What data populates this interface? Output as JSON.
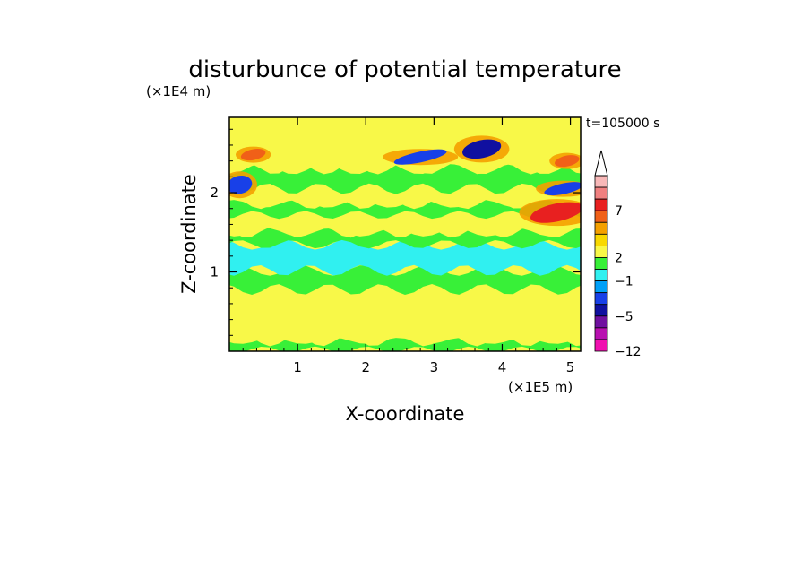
{
  "chart_data": {
    "type": "heatmap",
    "title": "disturbunce of potential temperature",
    "y_unit_label": "(×1E4 m)",
    "x_unit_label": "(×1E5 m)",
    "xlabel": "X-coordinate",
    "ylabel": "Z-coordinate",
    "time_label": "t=105000 s",
    "xlim": [
      0,
      5.15
    ],
    "ylim": [
      0,
      2.95
    ],
    "x_ticks": [
      "1",
      "2",
      "3",
      "4",
      "5"
    ],
    "y_ticks": [
      "1",
      "2"
    ],
    "colorbar": {
      "tick_labels": [
        "7",
        "2",
        "−1",
        "−5",
        "−12"
      ],
      "colors": [
        "#f8b8b8",
        "#f08080",
        "#e82020",
        "#f06018",
        "#f4a000",
        "#f8d800",
        "#f8f848",
        "#38f038",
        "#30f0f0",
        "#00a0f8",
        "#1840e8",
        "#1010a0",
        "#7010a0",
        "#b810b0",
        "#f010b0"
      ],
      "extend_top": true
    },
    "bands": [
      {
        "z": [
          0.02,
          0.13
        ],
        "level": "green"
      },
      {
        "z": [
          0.13,
          0.78
        ],
        "level": "yellow"
      },
      {
        "z": [
          0.78,
          1.02
        ],
        "level": "green"
      },
      {
        "z": [
          1.02,
          1.35
        ],
        "level": "cyan"
      },
      {
        "z": [
          1.35,
          1.5
        ],
        "level": "green"
      },
      {
        "z": [
          1.5,
          1.72
        ],
        "level": "yellow"
      },
      {
        "z": [
          1.72,
          1.86
        ],
        "level": "green"
      },
      {
        "z": [
          1.86,
          2.05
        ],
        "level": "yellow"
      },
      {
        "z": [
          2.05,
          2.3
        ],
        "level": "green"
      },
      {
        "z": [
          2.3,
          2.95
        ],
        "level": "yellow"
      }
    ],
    "features": [
      {
        "x": 0.35,
        "z": 2.48,
        "level": "orange",
        "note": "warm anomaly upper left"
      },
      {
        "x": 3.7,
        "z": 2.55,
        "level": "darkblue",
        "note": "cold anomaly upper middle"
      },
      {
        "x": 2.8,
        "z": 2.45,
        "level": "blue"
      },
      {
        "x": 0.15,
        "z": 2.1,
        "level": "blue"
      },
      {
        "x": 4.9,
        "z": 2.05,
        "level": "blue"
      },
      {
        "x": 4.8,
        "z": 1.75,
        "level": "red"
      },
      {
        "x": 4.95,
        "z": 2.4,
        "level": "orange"
      }
    ]
  }
}
